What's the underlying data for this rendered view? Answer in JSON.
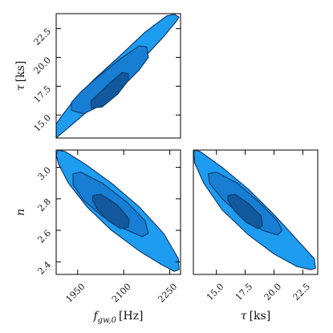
{
  "chart_data": {
    "type": "corner",
    "colors": {
      "level_1": "#1e9cf0",
      "level_2": "#177ed3",
      "level_3": "#11599c",
      "edge": "#0f3f70"
    },
    "panels": [
      {
        "id": "tau_vs_fgw",
        "row": 0,
        "col": 0,
        "x_param": "f_gw0",
        "y_param": "tau",
        "xlim": [
          1880,
          2285
        ],
        "ylim": [
          13.0,
          23.8
        ],
        "xticks": [],
        "yticks": [
          {
            "value": 15.0,
            "label": "15.0"
          },
          {
            "value": 17.5,
            "label": "17.5"
          },
          {
            "value": 20.0,
            "label": "20.0"
          },
          {
            "value": 22.5,
            "label": "22.5"
          }
        ],
        "ylabel": "τ [ks]",
        "contours": [
          {
            "level": 1,
            "points": [
              [
                1880,
                13.0
              ],
              [
                1990,
                15.5
              ],
              [
                2080,
                17.7
              ],
              [
                2160,
                19.8
              ],
              [
                2230,
                21.8
              ],
              [
                2270,
                23.1
              ],
              [
                2280,
                23.5
              ],
              [
                2265,
                23.75
              ],
              [
                2240,
                23.6
              ],
              [
                2170,
                22.2
              ],
              [
                2090,
                20.2
              ],
              [
                2000,
                18.0
              ],
              [
                1935,
                16.2
              ],
              [
                1895,
                14.8
              ],
              [
                1880,
                14.2
              ],
              [
                1880,
                13.0
              ]
            ]
          },
          {
            "level": 2,
            "points": [
              [
                1930,
                15.4
              ],
              [
                1970,
                15.1
              ],
              [
                2030,
                15.9
              ],
              [
                2090,
                17.3
              ],
              [
                2150,
                18.9
              ],
              [
                2180,
                20.0
              ],
              [
                2175,
                20.9
              ],
              [
                2150,
                21.0
              ],
              [
                2090,
                19.9
              ],
              [
                2020,
                18.4
              ],
              [
                1960,
                17.0
              ],
              [
                1930,
                16.1
              ],
              [
                1930,
                15.4
              ]
            ]
          },
          {
            "level": 3,
            "points": [
              [
                1995,
                15.6
              ],
              [
                2030,
                15.7
              ],
              [
                2080,
                16.8
              ],
              [
                2115,
                18.0
              ],
              [
                2115,
                18.6
              ],
              [
                2095,
                18.7
              ],
              [
                2060,
                17.9
              ],
              [
                2020,
                16.9
              ],
              [
                1993,
                16.2
              ],
              [
                1995,
                15.6
              ]
            ]
          }
        ]
      },
      {
        "id": "n_vs_fgw",
        "row": 1,
        "col": 0,
        "x_param": "f_gw0",
        "y_param": "n",
        "xlim": [
          1880,
          2285
        ],
        "ylim": [
          2.32,
          3.11
        ],
        "xticks": [
          {
            "value": 1950,
            "label": "1950"
          },
          {
            "value": 2100,
            "label": "2100"
          },
          {
            "value": 2250,
            "label": "2250"
          }
        ],
        "yticks": [
          {
            "value": 2.4,
            "label": "2.4"
          },
          {
            "value": 2.6,
            "label": "2.6"
          },
          {
            "value": 2.8,
            "label": "2.8"
          },
          {
            "value": 3.0,
            "label": "3.0"
          }
        ],
        "xlabel": "f_gw,0 [Hz]",
        "ylabel": "n",
        "contours": [
          {
            "level": 1,
            "points": [
              [
                1885,
                3.11
              ],
              [
                1910,
                3.1
              ],
              [
                1975,
                3.02
              ],
              [
                2060,
                2.9
              ],
              [
                2150,
                2.75
              ],
              [
                2230,
                2.58
              ],
              [
                2278,
                2.42
              ],
              [
                2280,
                2.35
              ],
              [
                2265,
                2.34
              ],
              [
                2225,
                2.38
              ],
              [
                2150,
                2.47
              ],
              [
                2060,
                2.6
              ],
              [
                1980,
                2.75
              ],
              [
                1920,
                2.9
              ],
              [
                1888,
                3.02
              ],
              [
                1880,
                3.08
              ],
              [
                1885,
                3.11
              ]
            ]
          },
          {
            "level": 2,
            "points": [
              [
                1935,
                2.96
              ],
              [
                1960,
                2.97
              ],
              [
                2030,
                2.9
              ],
              [
                2110,
                2.78
              ],
              [
                2170,
                2.66
              ],
              [
                2180,
                2.58
              ],
              [
                2160,
                2.56
              ],
              [
                2100,
                2.61
              ],
              [
                2030,
                2.69
              ],
              [
                1970,
                2.79
              ],
              [
                1935,
                2.89
              ],
              [
                1935,
                2.96
              ]
            ]
          },
          {
            "level": 3,
            "points": [
              [
                2000,
                2.82
              ],
              [
                2025,
                2.83
              ],
              [
                2080,
                2.76
              ],
              [
                2118,
                2.67
              ],
              [
                2115,
                2.62
              ],
              [
                2090,
                2.61
              ],
              [
                2050,
                2.66
              ],
              [
                2015,
                2.73
              ],
              [
                1998,
                2.79
              ],
              [
                2000,
                2.82
              ]
            ]
          }
        ]
      },
      {
        "id": "n_vs_tau",
        "row": 1,
        "col": 1,
        "x_param": "tau",
        "y_param": "n",
        "xlim": [
          13.0,
          23.8
        ],
        "ylim": [
          2.32,
          3.11
        ],
        "xticks": [
          {
            "value": 15.0,
            "label": "15.0"
          },
          {
            "value": 17.5,
            "label": "17.5"
          },
          {
            "value": 20.0,
            "label": "20.0"
          },
          {
            "value": 22.5,
            "label": "22.5"
          }
        ],
        "yticks": [],
        "xlabel": "τ [ks]",
        "contours": [
          {
            "level": 1,
            "points": [
              [
                13.1,
                3.11
              ],
              [
                13.6,
                3.1
              ],
              [
                15.5,
                3.0
              ],
              [
                17.8,
                2.86
              ],
              [
                20.0,
                2.7
              ],
              [
                22.0,
                2.54
              ],
              [
                23.5,
                2.42
              ],
              [
                23.6,
                2.36
              ],
              [
                23.2,
                2.35
              ],
              [
                22.0,
                2.37
              ],
              [
                20.0,
                2.45
              ],
              [
                17.8,
                2.57
              ],
              [
                15.5,
                2.73
              ],
              [
                13.9,
                2.9
              ],
              [
                13.1,
                3.03
              ],
              [
                13.05,
                3.09
              ],
              [
                13.1,
                3.11
              ]
            ]
          },
          {
            "level": 2,
            "points": [
              [
                14.3,
                2.96
              ],
              [
                15.0,
                2.97
              ],
              [
                16.8,
                2.9
              ],
              [
                18.7,
                2.78
              ],
              [
                20.3,
                2.66
              ],
              [
                20.7,
                2.6
              ],
              [
                20.3,
                2.57
              ],
              [
                19.0,
                2.6
              ],
              [
                17.2,
                2.69
              ],
              [
                15.5,
                2.8
              ],
              [
                14.4,
                2.9
              ],
              [
                14.3,
                2.96
              ]
            ]
          },
          {
            "level": 3,
            "points": [
              [
                16.0,
                2.82
              ],
              [
                16.6,
                2.83
              ],
              [
                17.8,
                2.77
              ],
              [
                18.9,
                2.69
              ],
              [
                19.0,
                2.63
              ],
              [
                18.6,
                2.61
              ],
              [
                17.6,
                2.65
              ],
              [
                16.6,
                2.72
              ],
              [
                16.0,
                2.79
              ],
              [
                16.0,
                2.82
              ]
            ]
          }
        ]
      }
    ],
    "axis_labels": {
      "fgw": "f_gw,0 [Hz]",
      "tau": "τ [ks]",
      "n": "n"
    },
    "grid": false,
    "legend": "none"
  }
}
